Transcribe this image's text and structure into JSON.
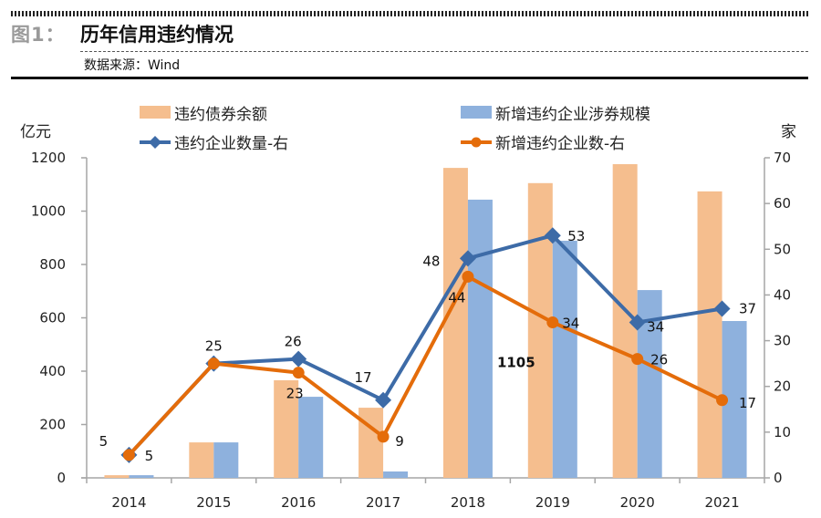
{
  "header": {
    "figure_label": "图1：",
    "title": "历年信用违约情况",
    "source": "数据来源：Wind"
  },
  "chart_data": {
    "type": "bar",
    "title": "历年信用违约情况",
    "categories": [
      "2014",
      "2015",
      "2016",
      "2017",
      "2018",
      "2019",
      "2020",
      "2021"
    ],
    "ylabel_left": "亿元",
    "ylabel_right": "家",
    "ylim_left": [
      0,
      1200
    ],
    "ylim_right": [
      0,
      70
    ],
    "yticks_left": [
      "0",
      "200",
      "400",
      "600",
      "800",
      "1000",
      "1200"
    ],
    "yticks_right": [
      "0",
      "10",
      "20",
      "30",
      "40",
      "50",
      "60",
      "70"
    ],
    "grid": false,
    "legend_position": "top",
    "series": [
      {
        "name": "违约债券余额",
        "type": "bar",
        "axis": "left",
        "color": "#F5BE8E",
        "values": [
          10,
          133,
          366,
          263,
          1162,
          1105,
          1176,
          1074
        ]
      },
      {
        "name": "新增违约企业涉券规模",
        "type": "bar",
        "axis": "left",
        "color": "#8EB1DD",
        "values": [
          10,
          133,
          304,
          24,
          1043,
          889,
          704,
          588
        ]
      },
      {
        "name": "违约企业数量-右",
        "type": "line",
        "axis": "right",
        "color": "#3D6BA7",
        "marker": "diamond",
        "values": [
          5,
          25,
          26,
          17,
          48,
          53,
          34,
          37
        ]
      },
      {
        "name": "新增违约企业数-右",
        "type": "line",
        "axis": "right",
        "color": "#E46C0A",
        "marker": "circle",
        "values": [
          5,
          25,
          23,
          9,
          44,
          34,
          26,
          17
        ]
      }
    ],
    "annotations": [
      {
        "text": "1105",
        "note": "label of 违约债券余额 2019"
      }
    ]
  }
}
